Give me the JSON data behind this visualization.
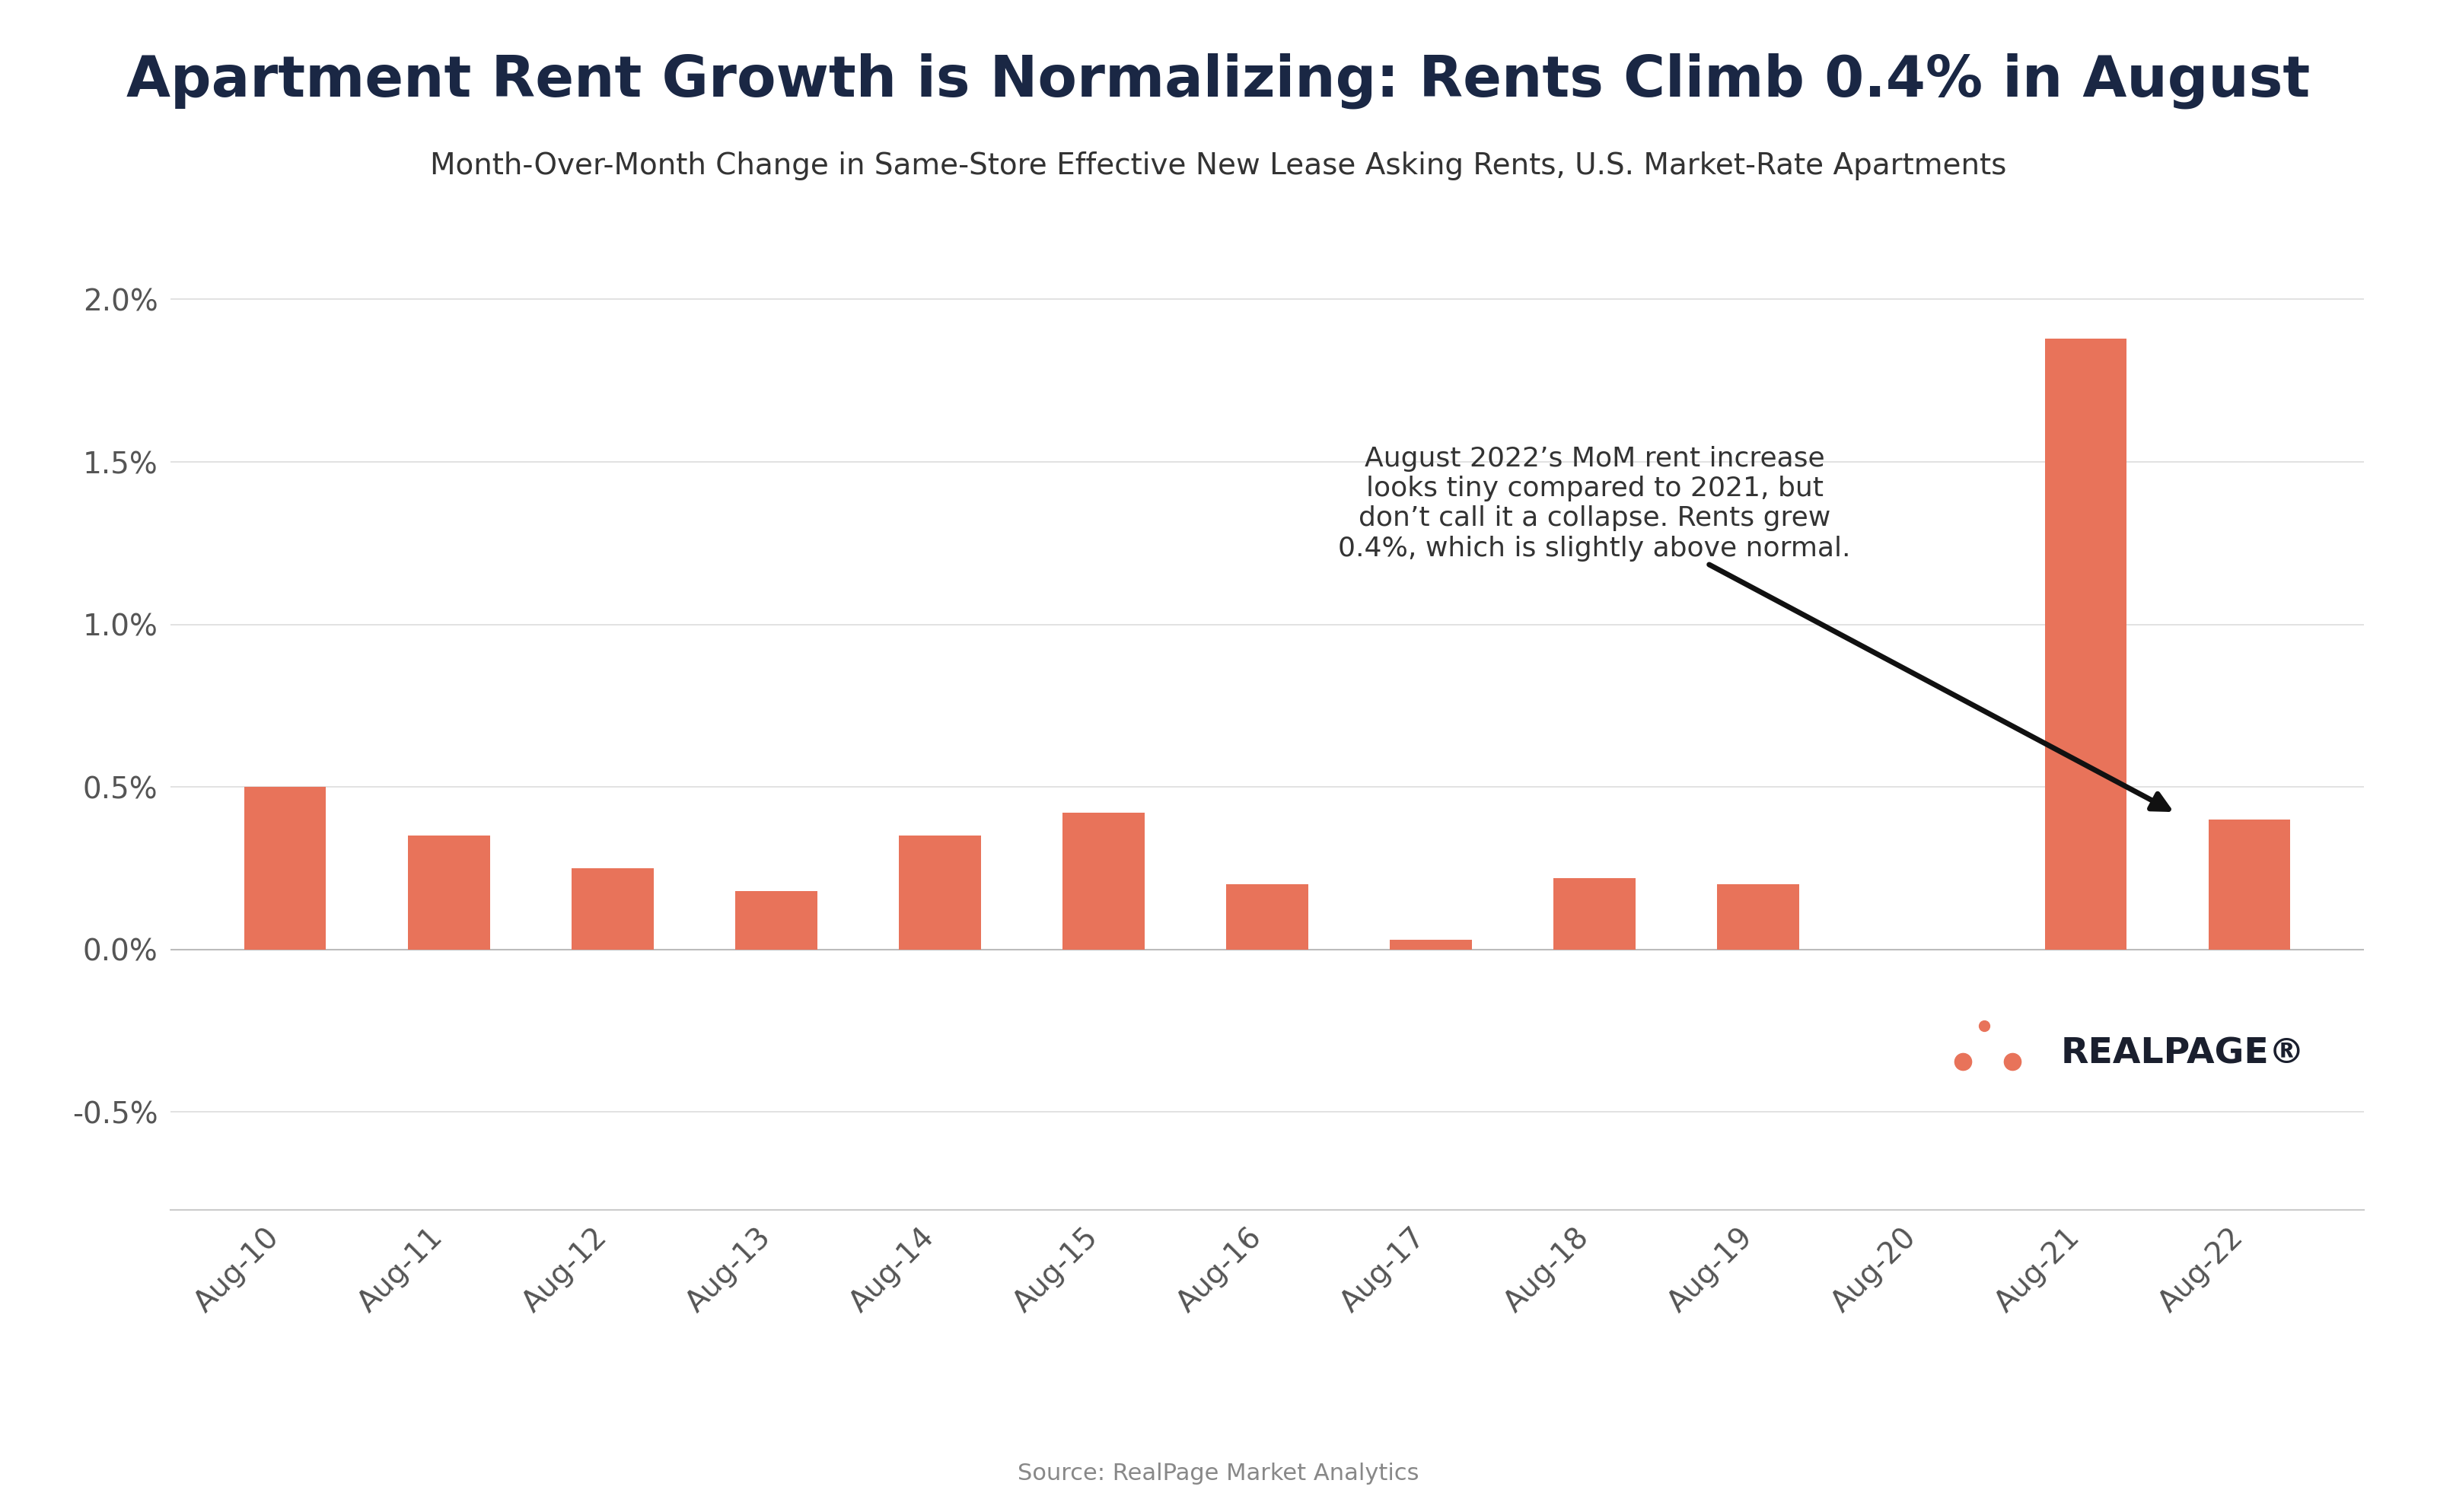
{
  "categories": [
    "Aug-10",
    "Aug-11",
    "Aug-12",
    "Aug-13",
    "Aug-14",
    "Aug-15",
    "Aug-16",
    "Aug-17",
    "Aug-18",
    "Aug-19",
    "Aug-20",
    "Aug-21",
    "Aug-22"
  ],
  "values": [
    0.005,
    0.0035,
    0.0025,
    0.0018,
    0.0035,
    0.0042,
    0.002,
    0.0003,
    0.0022,
    0.002,
    0.0,
    0.0188,
    0.004
  ],
  "bar_color": "#E8735A",
  "title": "Apartment Rent Growth is Normalizing: Rents Climb 0.4% in August",
  "subtitle": "Month-Over-Month Change in Same-Store Effective New Lease Asking Rents, U.S. Market-Rate Apartments",
  "source": "Source: RealPage Market Analytics",
  "title_color": "#1a2744",
  "subtitle_color": "#333333",
  "yticks": [
    -0.005,
    0.0,
    0.005,
    0.01,
    0.015,
    0.02
  ],
  "ytick_labels": [
    "-0.5%",
    "0.0%",
    "0.5%",
    "1.0%",
    "1.5%",
    "2.0%"
  ],
  "ylim": [
    -0.008,
    0.022
  ],
  "annotation_text": "August 2022’s MoM rent increase\nlooks tiny compared to 2021, but\ndon’t call it a collapse. Rents grew\n0.4%, which is slightly above normal.",
  "annotation_color": "#333333",
  "background_color": "#ffffff",
  "realpage_logo_color": "#E8735A",
  "realpage_text_color": "#1a1f2e"
}
